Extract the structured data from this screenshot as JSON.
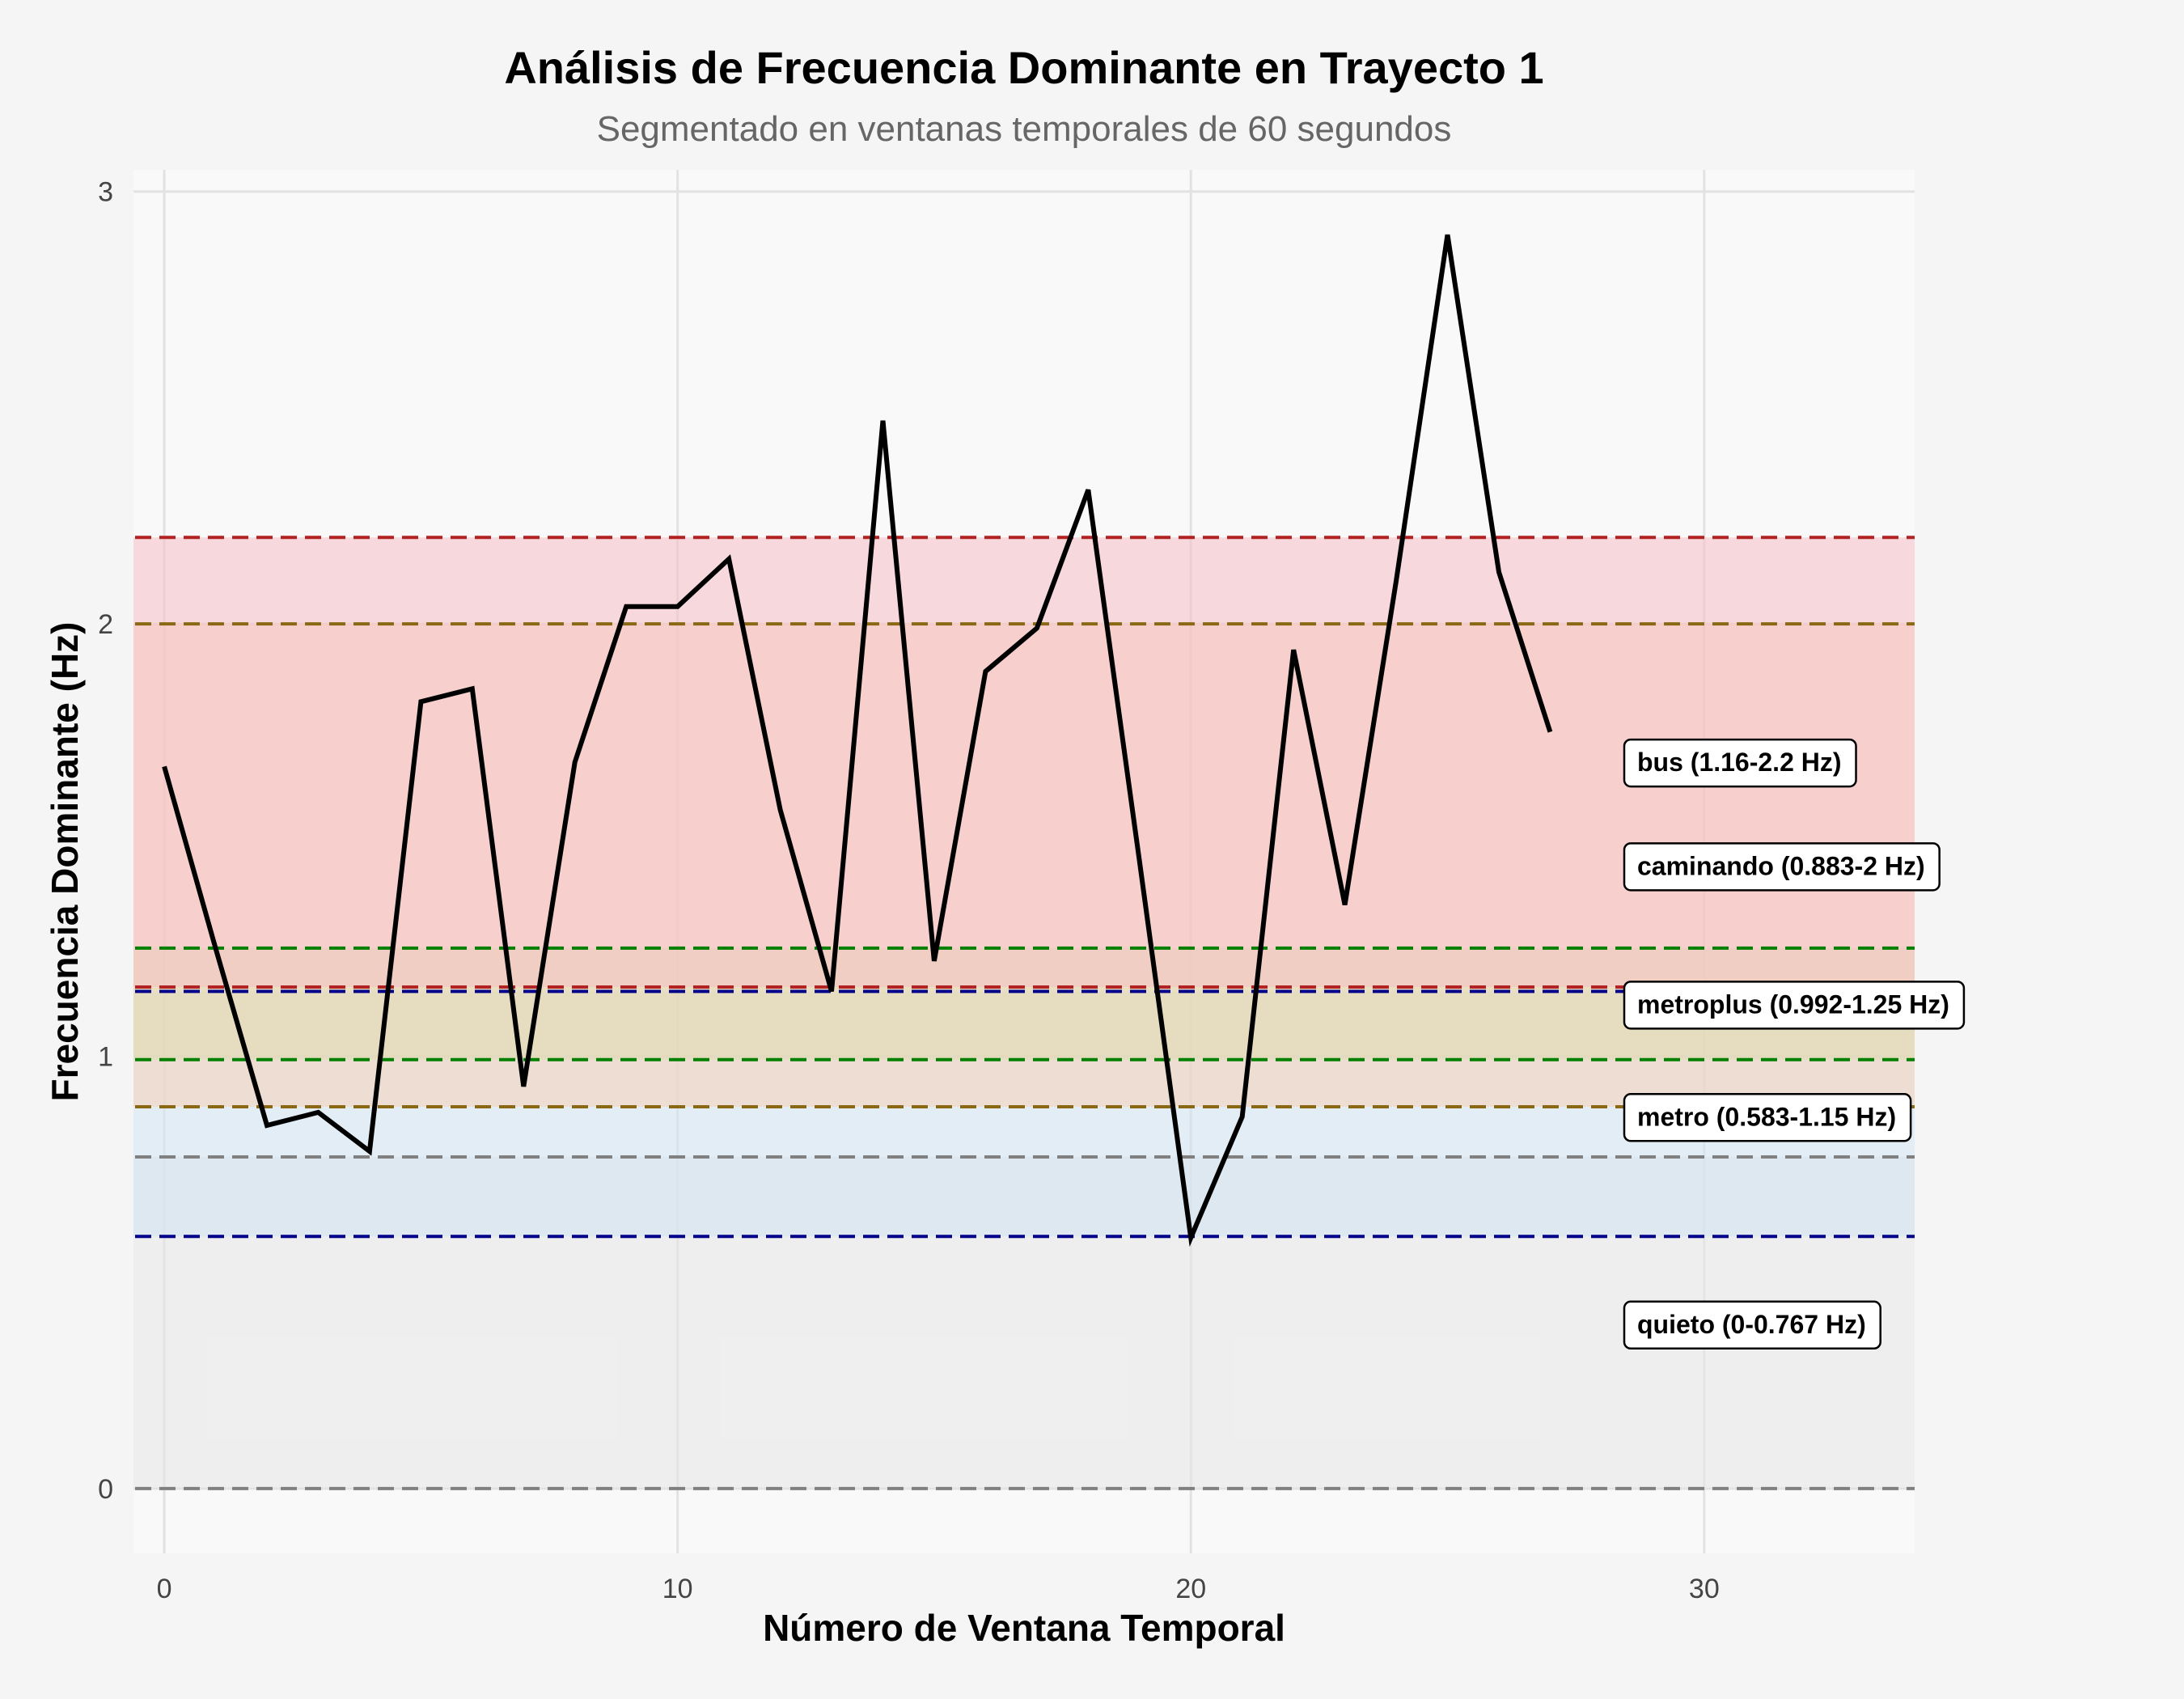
{
  "chart_data": {
    "type": "line",
    "title": "Análisis de Frecuencia Dominante en Trayecto 1",
    "subtitle": "Segmentado en ventanas temporales de 60 segundos",
    "xlabel": "Número de Ventana Temporal",
    "ylabel": "Frecuencia Dominante (Hz)",
    "xlim": [
      -0.6,
      34.1
    ],
    "ylim": [
      -0.15,
      3.05
    ],
    "xticks": [
      0,
      10,
      20,
      30
    ],
    "yticks": [
      0,
      1,
      2,
      3
    ],
    "grid": true,
    "series": [
      {
        "color": "#000000",
        "x": [
          0,
          1,
          2,
          3,
          4,
          5,
          6,
          7,
          8,
          9,
          10,
          11,
          12,
          13,
          14,
          15,
          16,
          17,
          18,
          19,
          20,
          21,
          22,
          23,
          24,
          25,
          26,
          27
        ],
        "y": [
          1.67,
          1.25,
          0.84,
          0.87,
          0.78,
          1.82,
          1.85,
          0.93,
          1.68,
          2.04,
          2.04,
          2.15,
          1.57,
          1.15,
          2.47,
          1.22,
          1.89,
          1.99,
          2.31,
          1.45,
          0.58,
          0.86,
          1.94,
          1.35,
          2.1,
          2.9,
          2.12,
          1.75
        ]
      }
    ],
    "bands": [
      {
        "name": "quieto",
        "label": "quieto (0-0.767 Hz)",
        "low": 0,
        "high": 0.767,
        "fill": "#e6e6e6",
        "line": "#808080",
        "label_y": 0.38
      },
      {
        "name": "metro",
        "label": "metro (0.583-1.15 Hz)",
        "low": 0.583,
        "high": 1.15,
        "fill": "#cfe3f3",
        "line": "#00008b",
        "label_y": 0.86
      },
      {
        "name": "metroplus",
        "label": "metroplus (0.992-1.25 Hz)",
        "low": 0.992,
        "high": 1.25,
        "fill": "#c3ecb0",
        "line": "#008000",
        "label_y": 1.12
      },
      {
        "name": "caminando",
        "label": "caminando (0.883-2 Hz)",
        "low": 0.883,
        "high": 2.0,
        "fill": "#f8d0b5",
        "line": "#8b6914",
        "label_y": 1.44
      },
      {
        "name": "bus",
        "label": "bus (1.16-2.2 Hz)",
        "low": 1.16,
        "high": 2.2,
        "fill": "#f6c0c6",
        "line": "#b22222",
        "label_y": 1.68
      }
    ]
  }
}
